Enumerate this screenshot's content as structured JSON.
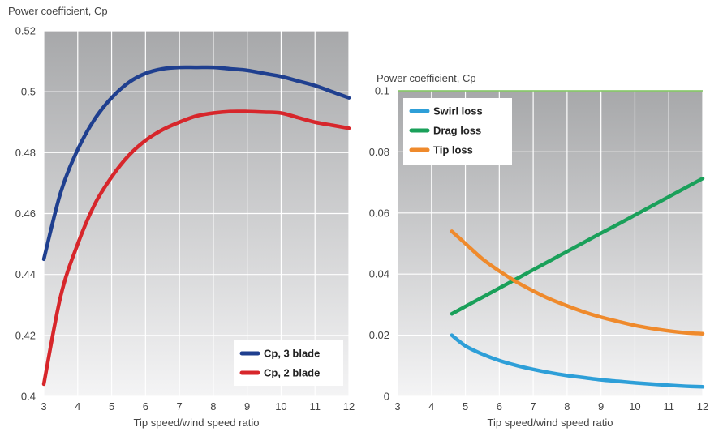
{
  "chart_data": [
    {
      "type": "line",
      "title": "",
      "ylabel": "Power coefficient, Cp",
      "xlabel": "Tip speed/wind speed ratio",
      "xlim": [
        3,
        12
      ],
      "ylim": [
        0.4,
        0.52
      ],
      "xticks": [
        "3",
        "4",
        "5",
        "6",
        "7",
        "8",
        "9",
        "10",
        "11",
        "12"
      ],
      "yticks": [
        "0.4",
        "0.42",
        "0.44",
        "0.46",
        "0.48",
        "0.5",
        "0.52"
      ],
      "grid": true,
      "legend_position": "bottom-right",
      "x": [
        3,
        3.5,
        4,
        4.5,
        5,
        5.5,
        6,
        6.5,
        7,
        7.5,
        8,
        8.5,
        9,
        9.5,
        10,
        10.5,
        11,
        11.5,
        12
      ],
      "series": [
        {
          "name": "Cp, 3 blade",
          "color": "#1f3f8f",
          "values": [
            0.445,
            0.467,
            0.481,
            0.491,
            0.498,
            0.503,
            0.506,
            0.5075,
            0.508,
            0.508,
            0.508,
            0.5075,
            0.507,
            0.506,
            0.505,
            0.5035,
            0.502,
            0.5,
            0.498
          ]
        },
        {
          "name": "Cp, 2 blade",
          "color": "#d7262b",
          "values": [
            0.404,
            0.433,
            0.45,
            0.463,
            0.472,
            0.479,
            0.484,
            0.4875,
            0.49,
            0.492,
            0.493,
            0.4935,
            0.4935,
            0.4933,
            0.493,
            0.4915,
            0.49,
            0.489,
            0.488
          ]
        }
      ]
    },
    {
      "type": "line",
      "title": "",
      "ylabel": "Power coefficient, Cp",
      "xlabel": "Tip speed/wind speed ratio",
      "xlim": [
        3,
        12
      ],
      "ylim": [
        0,
        0.1
      ],
      "xticks": [
        "3",
        "4",
        "5",
        "6",
        "7",
        "8",
        "9",
        "10",
        "11",
        "12"
      ],
      "yticks": [
        "0",
        "0.02",
        "0.04",
        "0.06",
        "0.08",
        "0.1"
      ],
      "grid": true,
      "legend_position": "top-left",
      "x": [
        4.6,
        5,
        5.5,
        6,
        6.5,
        7,
        7.5,
        8,
        8.5,
        9,
        9.5,
        10,
        10.5,
        11,
        11.5,
        12
      ],
      "series": [
        {
          "name": "Swirl loss",
          "color": "#2e9fd8",
          "values": [
            0.02,
            0.0165,
            0.0138,
            0.0117,
            0.0101,
            0.0088,
            0.0077,
            0.0068,
            0.0061,
            0.0054,
            0.0049,
            0.0044,
            0.004,
            0.0036,
            0.0033,
            0.0031
          ]
        },
        {
          "name": "Drag loss",
          "color": "#1aa05a",
          "values": [
            0.027,
            0.0294,
            0.0324,
            0.0354,
            0.0384,
            0.0414,
            0.0444,
            0.0474,
            0.0504,
            0.0534,
            0.0563,
            0.0593,
            0.0623,
            0.0653,
            0.0683,
            0.0713
          ]
        },
        {
          "name": "Tip loss",
          "color": "#ef8a2c",
          "values": [
            0.054,
            0.05,
            0.045,
            0.041,
            0.0375,
            0.0345,
            0.0318,
            0.0296,
            0.0276,
            0.0259,
            0.0245,
            0.0232,
            0.0222,
            0.0214,
            0.0208,
            0.0205
          ]
        }
      ]
    }
  ]
}
